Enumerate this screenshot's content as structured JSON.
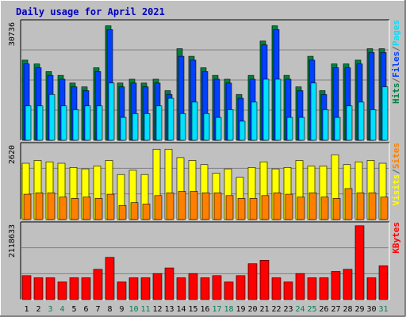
{
  "chart_data": {
    "type": "bar",
    "title": "Daily usage for April 2021",
    "categories": [
      "1",
      "2",
      "3",
      "4",
      "5",
      "6",
      "7",
      "8",
      "9",
      "10",
      "11",
      "12",
      "13",
      "14",
      "15",
      "16",
      "17",
      "18",
      "19",
      "20",
      "21",
      "22",
      "23",
      "24",
      "25",
      "26",
      "27",
      "28",
      "29",
      "30",
      "31"
    ],
    "weekend_days": [
      "3",
      "4",
      "10",
      "11",
      "17",
      "18",
      "24",
      "25",
      "31"
    ],
    "panels": [
      {
        "id": "top",
        "ymax_label": "30736",
        "ymax": 30736,
        "series": [
          {
            "name": "Hits",
            "color": "#008040",
            "values": [
              21000,
              20000,
              18000,
              17000,
              15000,
              14000,
              19000,
              30000,
              15000,
              16000,
              15000,
              16000,
              13000,
              24000,
              22000,
              19000,
              17000,
              16000,
              12000,
              17000,
              26000,
              30000,
              17000,
              14000,
              22000,
              13000,
              20000,
              20000,
              21000,
              24000,
              24000
            ]
          },
          {
            "name": "Files",
            "color": "#0040ff",
            "values": [
              20000,
              19000,
              17000,
              16000,
              14000,
              13000,
              18000,
              29000,
              14000,
              15000,
              14000,
              15000,
              12000,
              22000,
              21000,
              18000,
              16000,
              15000,
              11000,
              16000,
              25000,
              29000,
              16000,
              13000,
              21000,
              12000,
              19000,
              19000,
              20000,
              23000,
              23000
            ]
          },
          {
            "name": "Pages",
            "color": "#00e0ff",
            "values": [
              9000,
              9000,
              12000,
              9000,
              8000,
              9000,
              9000,
              15000,
              6000,
              7000,
              7000,
              9000,
              11000,
              7000,
              10000,
              7000,
              6000,
              8000,
              5000,
              10000,
              16000,
              16000,
              6000,
              6000,
              15000,
              8000,
              6000,
              9000,
              10000,
              8000,
              14000
            ]
          }
        ]
      },
      {
        "id": "middle",
        "ymax_label": "2620",
        "ymax": 2620,
        "series": [
          {
            "name": "Visits",
            "color": "#ffff00",
            "values": [
              2000,
              2100,
              2050,
              2000,
              1850,
              1800,
              1900,
              2100,
              1600,
              1750,
              1600,
              2500,
              2500,
              2200,
              2100,
              1950,
              1650,
              1800,
              1500,
              1850,
              2050,
              1800,
              1850,
              2100,
              1900,
              1900,
              2300,
              1950,
              2050,
              2100,
              2000
            ]
          },
          {
            "name": "Sites",
            "color": "#ff8000",
            "values": [
              900,
              950,
              950,
              800,
              750,
              800,
              750,
              900,
              500,
              600,
              550,
              850,
              950,
              1000,
              1000,
              950,
              950,
              850,
              750,
              750,
              850,
              950,
              900,
              800,
              950,
              800,
              750,
              1100,
              950,
              950,
              800
            ]
          }
        ]
      },
      {
        "id": "bottom",
        "ymax_label": "2118633",
        "ymax": 2118633,
        "series": [
          {
            "name": "KBytes",
            "color": "#ff0000",
            "values": [
              680000,
              620000,
              620000,
              500000,
              620000,
              620000,
              860000,
              1200000,
              500000,
              620000,
              620000,
              740000,
              900000,
              620000,
              740000,
              620000,
              680000,
              500000,
              680000,
              1020000,
              1120000,
              620000,
              500000,
              740000,
              620000,
              620000,
              800000,
              860000,
              2100000,
              620000,
              960000
            ]
          }
        ]
      }
    ],
    "legend": {
      "top": [
        {
          "text": "Hits",
          "color": "#008040"
        },
        {
          "text": "/",
          "color": "#606060"
        },
        {
          "text": "Files",
          "color": "#0040ff"
        },
        {
          "text": "/",
          "color": "#606060"
        },
        {
          "text": "Pages",
          "color": "#00e0ff"
        }
      ],
      "middle": [
        {
          "text": "Visits",
          "color": "#ffff00"
        },
        {
          "text": "/",
          "color": "#606060"
        },
        {
          "text": "Sites",
          "color": "#ff8000"
        }
      ],
      "bottom": [
        {
          "text": "KBytes",
          "color": "#ff0000"
        }
      ]
    }
  }
}
